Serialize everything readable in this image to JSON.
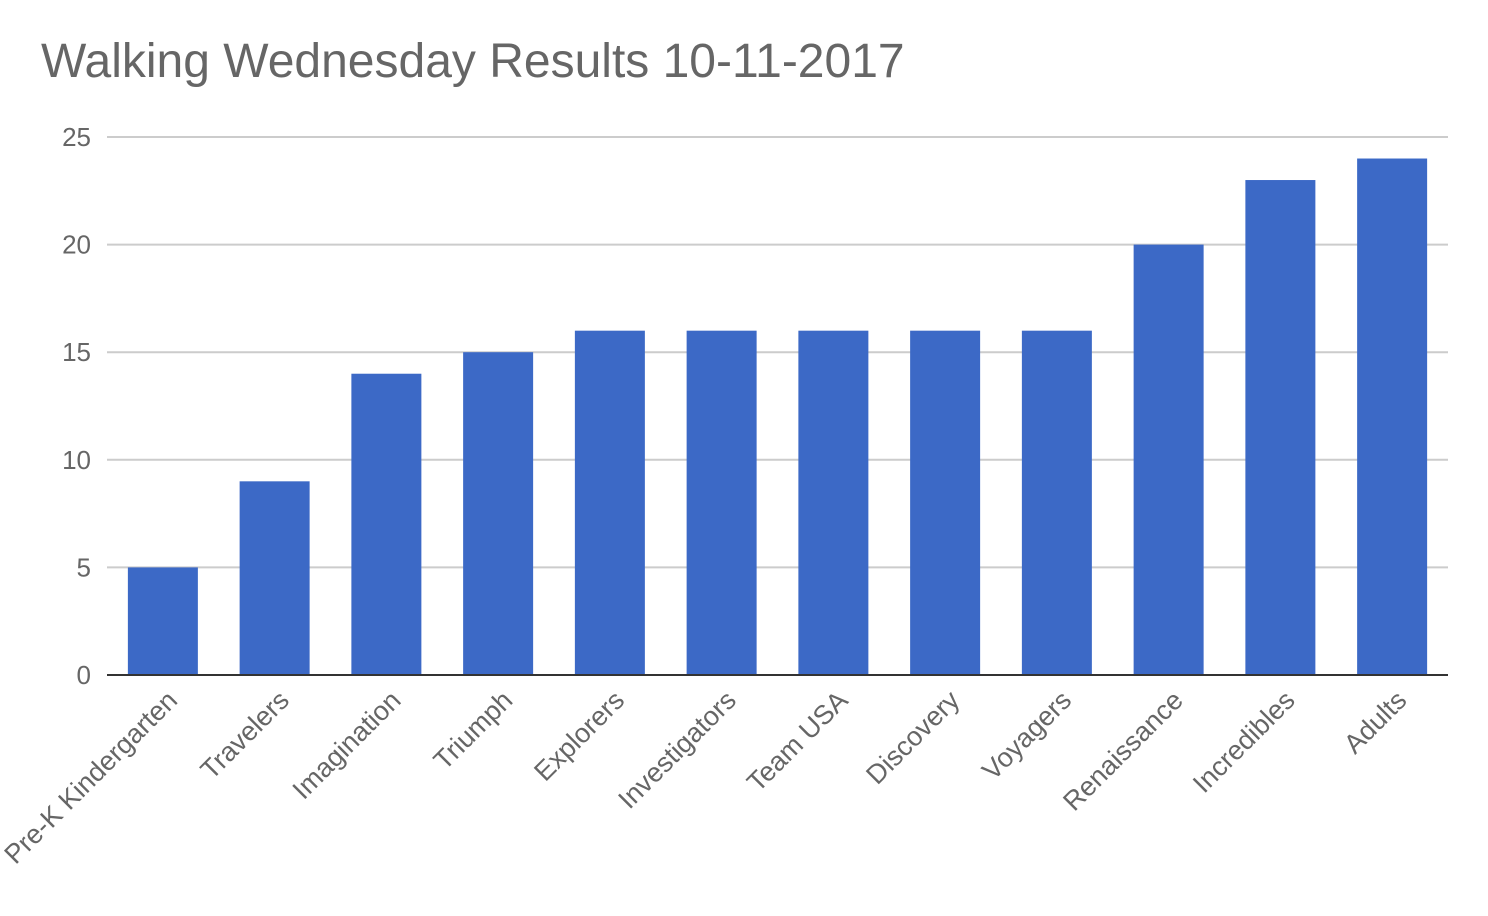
{
  "chart_data": {
    "type": "bar",
    "title": "Walking Wednesday Results 10-11-2017",
    "xlabel": "",
    "ylabel": "",
    "categories": [
      "Pre-K Kindergarten",
      "Travelers",
      "Imagination",
      "Triumph",
      "Explorers",
      "Investigators",
      "Team USA",
      "Discovery",
      "Voyagers",
      "Renaissance",
      "Incredibles",
      "Adults"
    ],
    "values": [
      5,
      9,
      14,
      15,
      16,
      16,
      16,
      16,
      16,
      20,
      23,
      24
    ],
    "ylim": [
      0,
      25
    ],
    "yticks": [
      0,
      5,
      10,
      15,
      20,
      25
    ],
    "grid": true,
    "legend": "none",
    "colors": {
      "bar": "#3c69c6",
      "grid": "#cccccc",
      "axis": "#333333",
      "text": "#666666"
    }
  }
}
